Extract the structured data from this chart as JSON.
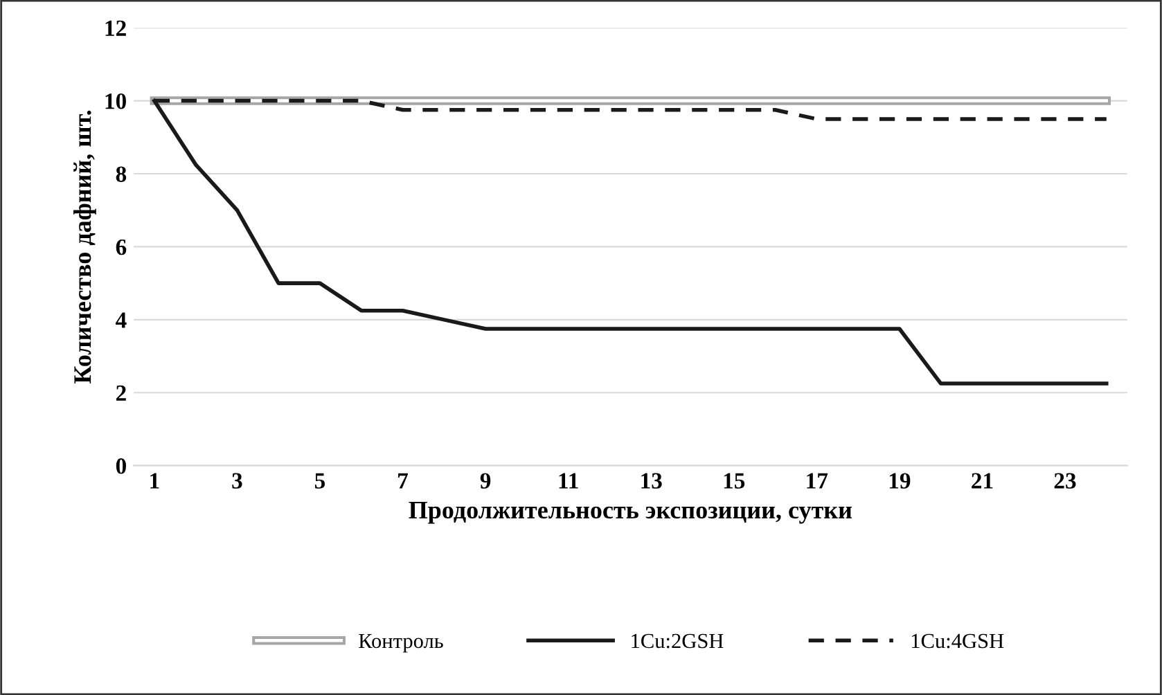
{
  "chart_data": {
    "type": "line",
    "xlabel": "Продолжительность экспозиции, сутки",
    "ylabel": "Количество дафний, шт.",
    "categories": [
      "1",
      null,
      "3",
      null,
      "5",
      null,
      "7",
      null,
      "9",
      null,
      "11",
      null,
      "13",
      null,
      "15",
      null,
      "17",
      null,
      "19",
      null,
      "21",
      null,
      "23",
      null
    ],
    "series": [
      {
        "name": "Контроль",
        "color": "#a6a6a6",
        "line_style": "solid",
        "values": [
          10,
          10,
          10,
          10,
          10,
          10,
          10,
          10,
          10,
          10,
          10,
          10,
          10,
          10,
          10,
          10,
          10,
          10,
          10,
          10,
          10,
          10,
          10,
          10
        ]
      },
      {
        "name": "1Cu:2GSH",
        "color": "#1a1a1a",
        "line_style": "solid",
        "values": [
          10,
          8.25,
          7,
          5,
          5,
          4.25,
          4.25,
          4,
          3.75,
          3.75,
          3.75,
          3.75,
          3.75,
          3.75,
          3.75,
          3.75,
          3.75,
          3.75,
          3.75,
          2.25,
          2.25,
          2.25,
          2.25,
          2.25
        ]
      },
      {
        "name": "1Cu:4GSH",
        "color": "#1a1a1a",
        "line_style": "dashed",
        "values": [
          10,
          10,
          10,
          10,
          10,
          10,
          9.75,
          9.75,
          9.75,
          9.75,
          9.75,
          9.75,
          9.75,
          9.75,
          9.75,
          9.75,
          9.5,
          9.5,
          9.5,
          9.5,
          9.5,
          9.5,
          9.5,
          9.5
        ]
      }
    ],
    "ylim": [
      0,
      12
    ],
    "yticks": [
      0,
      2,
      4,
      6,
      8,
      10,
      12
    ],
    "grid": "y",
    "legend": "bottom",
    "marker": "none"
  }
}
